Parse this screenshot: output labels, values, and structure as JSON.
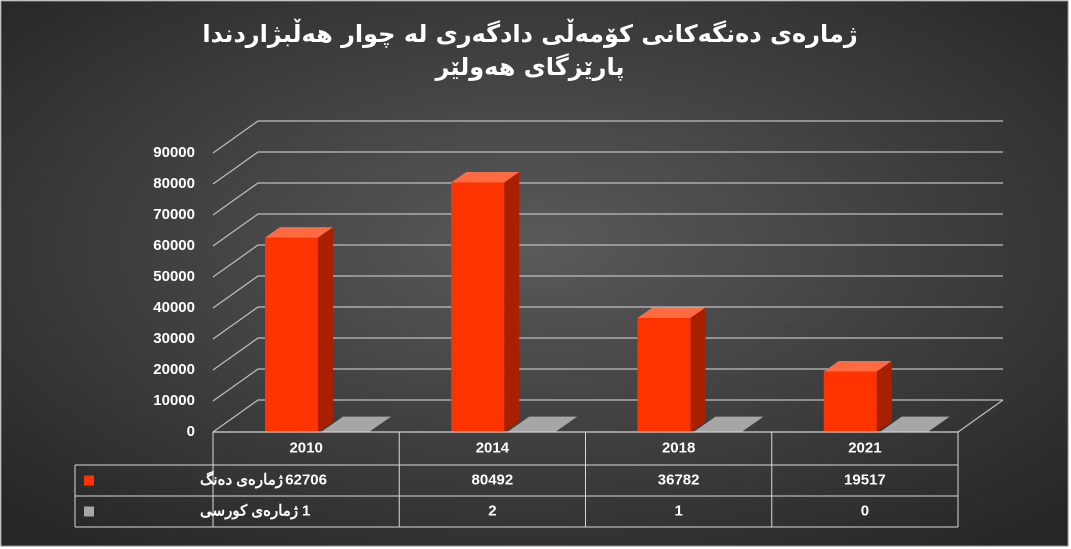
{
  "chart_data": {
    "type": "bar3d",
    "title": "ژمارەی دەنگەکانی  کۆمەڵی دادگەری لە چوار هەڵبژاردندا پارێزگای هەولێر",
    "categories": [
      "2010",
      "2014",
      "2018",
      "2021"
    ],
    "series": [
      {
        "name": "ژمارەی دەنگ",
        "color": "#ff3300",
        "values": [
          62706,
          80492,
          36782,
          19517
        ]
      },
      {
        "name": "ژمارەی کورسی",
        "color": "#a6a6a6",
        "values": [
          1,
          2,
          1,
          0
        ]
      }
    ],
    "ylim": [
      0,
      90000
    ],
    "yticks": [
      0,
      10000,
      20000,
      30000,
      40000,
      50000,
      60000,
      70000,
      80000,
      90000
    ],
    "grid": true
  }
}
